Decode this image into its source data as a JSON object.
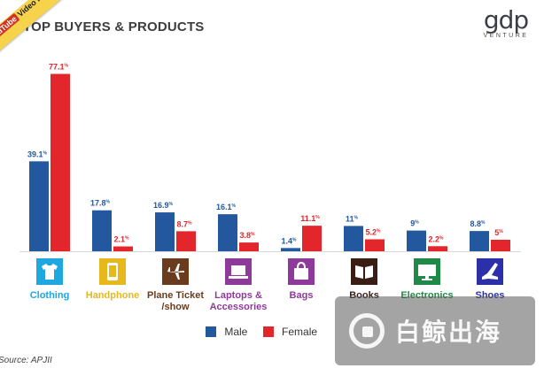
{
  "header": {
    "title": "TOP BUYERS & PRODUCTS"
  },
  "badge": {
    "brand": "YouTube",
    "text": "Video inside."
  },
  "logo": {
    "main": "gdp",
    "sub": "VENTURE"
  },
  "legend": {
    "male": "Male",
    "female": "Female"
  },
  "source": "Source: APJII",
  "watermark": {
    "text": "白鲸出海"
  },
  "colors": {
    "male": "#23589e",
    "female": "#e3262b"
  },
  "chart_data": {
    "type": "bar",
    "title": "TOP BUYERS & PRODUCTS",
    "xlabel": "",
    "ylabel": "",
    "grid": false,
    "legend_position": "bottom",
    "categories": [
      "Clothing",
      "Handphone",
      "Plane Ticket /show",
      "Laptops & Accessories",
      "Bags",
      "Books",
      "Electronics",
      "Shoes"
    ],
    "category_lines": [
      [
        "Clothing"
      ],
      [
        "Handphone"
      ],
      [
        "Plane Ticket",
        "/show"
      ],
      [
        "Laptops &",
        "Accessories"
      ],
      [
        "Bags"
      ],
      [
        "Books"
      ],
      [
        "Electronics"
      ],
      [
        "Shoes"
      ]
    ],
    "category_colors": [
      "#1fa7e0",
      "#e6b81c",
      "#6b3b1d",
      "#8e3a9a",
      "#8e3a9a",
      "#3a1e14",
      "#1f8a47",
      "#2b2fa8"
    ],
    "category_icons": [
      "tshirt-icon",
      "handphone-icon",
      "airplane-icon",
      "laptop-icon",
      "bag-icon",
      "book-icon",
      "monitor-icon",
      "shoe-icon"
    ],
    "series": [
      {
        "name": "Male",
        "values": [
          39.1,
          17.8,
          16.9,
          16.1,
          1.4,
          11,
          9,
          8.8
        ],
        "labels": [
          "39.1%",
          "17.8%",
          "16.9%",
          "16.1%",
          "1.4%",
          "11%",
          "9%",
          "8.8%"
        ]
      },
      {
        "name": "Female",
        "values": [
          77.1,
          2.1,
          8.7,
          3.8,
          11.1,
          5.2,
          2.2,
          5
        ],
        "labels": [
          "77.1%",
          "2.1%",
          "8.7%",
          "3.8%",
          "11.1%",
          "5.2%",
          "2.2%",
          "5%"
        ]
      }
    ],
    "ylim": [
      0,
      80
    ]
  }
}
